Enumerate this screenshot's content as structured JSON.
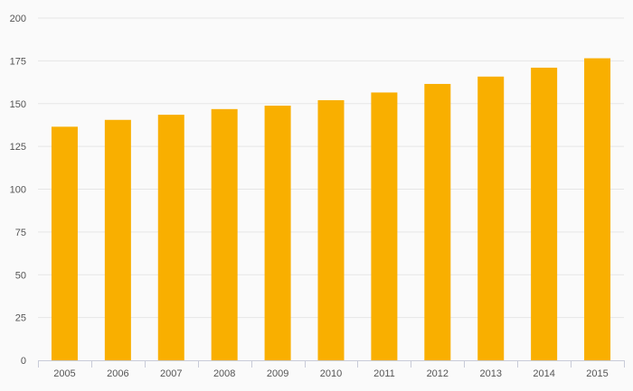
{
  "chart_data": {
    "type": "bar",
    "categories": [
      "2005",
      "2006",
      "2007",
      "2008",
      "2009",
      "2010",
      "2011",
      "2012",
      "2013",
      "2014",
      "2015"
    ],
    "series": [
      {
        "values": [
          136.5,
          140.5,
          143.5,
          146.8,
          148.8,
          152.0,
          156.5,
          161.5,
          165.8,
          171.0,
          176.5
        ]
      }
    ],
    "y_ticks": [
      "0",
      "25",
      "50",
      "75",
      "100",
      "125",
      "150",
      "175",
      "200"
    ],
    "ylim": [
      0,
      200
    ],
    "grid": true,
    "legend": "none",
    "colors": {
      "bar": "#F9AF00",
      "grid": "#e6e6e6",
      "axis": "#c8cbd8",
      "text": "#555555",
      "background": "#fafafa"
    }
  }
}
